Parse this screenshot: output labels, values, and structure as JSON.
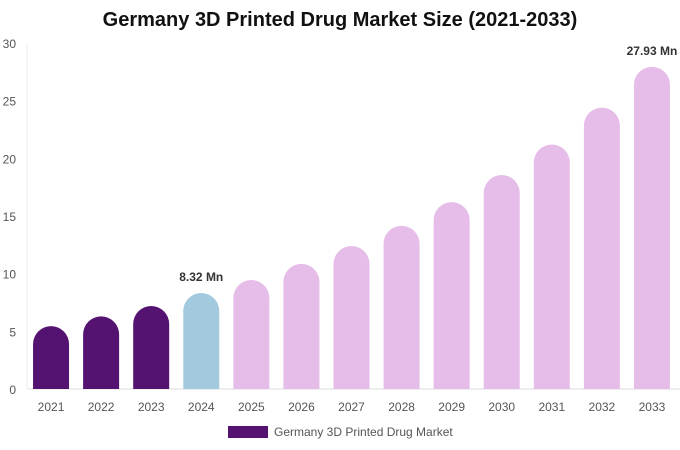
{
  "chart_data": {
    "type": "bar",
    "title": "Germany 3D Printed Drug Market Size (2021-2033)",
    "categories": [
      "2021",
      "2022",
      "2023",
      "2024",
      "2025",
      "2026",
      "2027",
      "2028",
      "2029",
      "2030",
      "2031",
      "2032",
      "2033"
    ],
    "series": [
      {
        "name": "Germany 3D Printed Drug Market",
        "values": [
          5.45,
          6.3,
          7.2,
          8.32,
          9.45,
          10.85,
          12.4,
          14.15,
          16.2,
          18.55,
          21.2,
          24.4,
          27.93
        ]
      }
    ],
    "data_labels": [
      {
        "category": "2024",
        "text": "8.32 Mn"
      },
      {
        "category": "2033",
        "text": "27.93 Mn"
      }
    ],
    "ylim": [
      0,
      30
    ],
    "yticks": [
      "0",
      "5",
      "10",
      "15",
      "20",
      "25",
      "30"
    ],
    "grid": false,
    "legend": "bottom",
    "colors": {
      "historical": "#541370",
      "base_year": "#a3c9de",
      "forecast": "#e6bde9"
    }
  }
}
